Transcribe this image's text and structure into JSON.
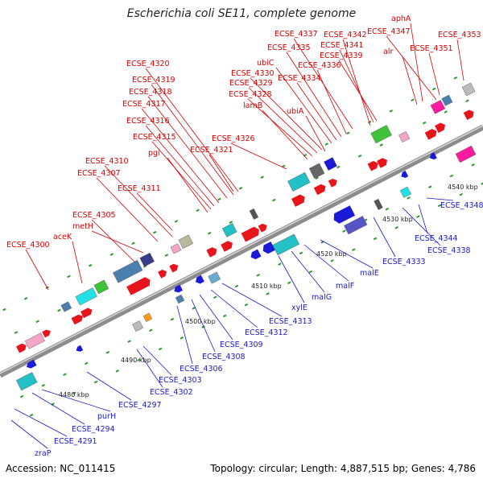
{
  "title": "Escherichia coli SE11, complete genome",
  "footer": {
    "accession": "Accession: NC_011415",
    "summary": "Topology: circular; Length: 4,887,515 bp; Genes: 4,786"
  },
  "colors": {
    "forward_label": "#d40000",
    "reverse_label": "#1a1ac8",
    "forward_arrow": "#e8141c",
    "reverse_arrow": "#1a1ad8",
    "backbone": "#8c8c8c",
    "tick": "#2a9a2a"
  },
  "kbp_ticks": [
    "4480 kbp",
    "4490 kbp",
    "4500 kbp",
    "4510 kbp",
    "4520 kbp",
    "4530 kbp",
    "4540 kbp"
  ],
  "forward_labels": [
    "ECSE_4300",
    "aceK",
    "ECSE_4305",
    "metH",
    "ECSE_4307",
    "ECSE_4310",
    "ECSE_4311",
    "pgi",
    "ECSE_4315",
    "ECSE_4316",
    "ECSE_4317",
    "ECSE_4318",
    "ECSE_4319",
    "ECSE_4320",
    "ECSE_4321",
    "ECSE_4326",
    "lamB",
    "ECSE_4328",
    "ECSE_4329",
    "ECSE_4330",
    "ubiC",
    "ECSE_4334",
    "ubiA",
    "ECSE_4335",
    "ECSE_4336",
    "ECSE_4337",
    "ECSE_4342",
    "ECSE_4341",
    "ECSE_4339",
    "alr",
    "aphA",
    "ECSE_4347",
    "ECSE_4351",
    "ECSE_4353"
  ],
  "reverse_labels": [
    "zraP",
    "ECSE_4291",
    "ECSE_4294",
    "purH",
    "ECSE_4297",
    "ECSE_4302",
    "ECSE_4303",
    "ECSE_4306",
    "ECSE_4308",
    "ECSE_4309",
    "ECSE_4312",
    "ECSE_4313",
    "xylE",
    "malG",
    "malF",
    "malE",
    "ECSE_4333",
    "ECSE_4338",
    "ECSE_4344",
    "ECSE_4348"
  ]
}
